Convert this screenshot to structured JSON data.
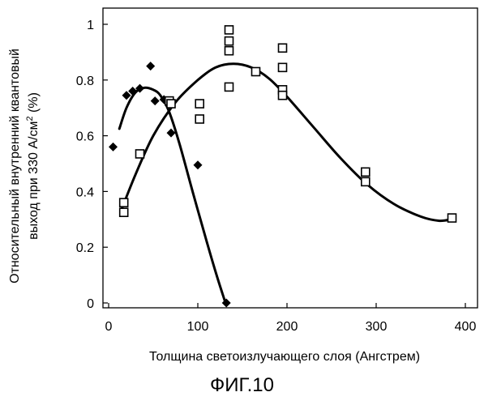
{
  "chart_data": {
    "type": "scatter",
    "xlabel": "Толщина светоизлучающего слоя (Ангстрем)",
    "ylabel_line1": "Относительный внутренний квантовый",
    "ylabel_line2_prefix": "выход при 330 А/см",
    "ylabel_line2_sup": "2",
    "ylabel_line2_suffix": " (%)",
    "xlim": [
      0,
      400
    ],
    "ylim": [
      0,
      1.0
    ],
    "xticks": [
      "0",
      "100",
      "200",
      "300",
      "400"
    ],
    "yticks": [
      "0",
      "0.2",
      "0.4",
      "0.6",
      "0.8",
      "1"
    ],
    "grid": false,
    "series": [
      {
        "marker": "diamond-filled",
        "points": [
          [
            5,
            0.56
          ],
          [
            20,
            0.745
          ],
          [
            27,
            0.76
          ],
          [
            35,
            0.77
          ],
          [
            47,
            0.85
          ],
          [
            52,
            0.725
          ],
          [
            62,
            0.73
          ],
          [
            70,
            0.61
          ],
          [
            100,
            0.495
          ],
          [
            132,
            0.0
          ]
        ],
        "curve": [
          [
            12,
            0.625
          ],
          [
            20,
            0.7
          ],
          [
            30,
            0.755
          ],
          [
            40,
            0.772
          ],
          [
            50,
            0.765
          ],
          [
            58,
            0.745
          ],
          [
            68,
            0.685
          ],
          [
            80,
            0.565
          ],
          [
            95,
            0.39
          ],
          [
            110,
            0.22
          ],
          [
            122,
            0.09
          ],
          [
            131,
            0.0
          ]
        ]
      },
      {
        "marker": "square-open",
        "points": [
          [
            17,
            0.36
          ],
          [
            17,
            0.325
          ],
          [
            35,
            0.535
          ],
          [
            68,
            0.725
          ],
          [
            70,
            0.715
          ],
          [
            102,
            0.715
          ],
          [
            102,
            0.66
          ],
          [
            135,
            0.98
          ],
          [
            135,
            0.94
          ],
          [
            135,
            0.905
          ],
          [
            135,
            0.775
          ],
          [
            165,
            0.83
          ],
          [
            195,
            0.915
          ],
          [
            195,
            0.845
          ],
          [
            195,
            0.765
          ],
          [
            195,
            0.745
          ],
          [
            288,
            0.47
          ],
          [
            288,
            0.435
          ],
          [
            385,
            0.305
          ]
        ],
        "curve": [
          [
            15,
            0.34
          ],
          [
            30,
            0.46
          ],
          [
            50,
            0.6
          ],
          [
            75,
            0.72
          ],
          [
            100,
            0.8
          ],
          [
            120,
            0.845
          ],
          [
            140,
            0.858
          ],
          [
            160,
            0.845
          ],
          [
            180,
            0.805
          ],
          [
            200,
            0.74
          ],
          [
            230,
            0.63
          ],
          [
            260,
            0.52
          ],
          [
            290,
            0.425
          ],
          [
            320,
            0.355
          ],
          [
            350,
            0.31
          ],
          [
            370,
            0.295
          ],
          [
            385,
            0.3
          ]
        ]
      }
    ]
  },
  "caption": "ФИГ.10"
}
